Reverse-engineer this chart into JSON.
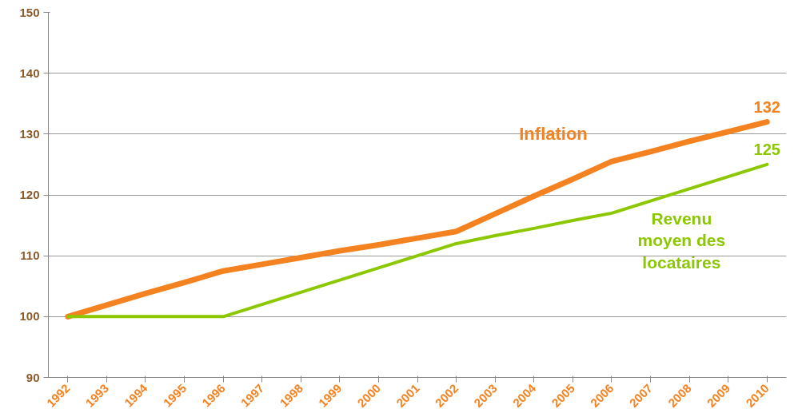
{
  "chart_data": {
    "type": "line",
    "categories": [
      "1992",
      "1993",
      "1994",
      "1995",
      "1996",
      "1997",
      "1998",
      "1999",
      "2000",
      "2001",
      "2002",
      "2003",
      "2004",
      "2005",
      "2006",
      "2007",
      "2008",
      "2009",
      "2010"
    ],
    "series": [
      {
        "name": "Inflation",
        "color": "#f58220",
        "values": [
          100,
          101.9,
          103.8,
          105.6,
          107.5,
          108.6,
          109.7,
          110.8,
          111.8,
          112.9,
          114,
          116.9,
          119.8,
          122.6,
          125.5,
          127.1,
          128.8,
          130.4,
          132
        ],
        "value_labels": [
          null,
          null,
          null,
          null,
          null,
          null,
          null,
          null,
          null,
          null,
          null,
          null,
          null,
          null,
          null,
          null,
          null,
          null,
          "132"
        ]
      },
      {
        "name": "Revenu moyen des locataires",
        "color": "#8cc800",
        "values": [
          100,
          100,
          100,
          100,
          100,
          102,
          104,
          106,
          108,
          110,
          112,
          113.3,
          114.5,
          115.8,
          117,
          119,
          121,
          123,
          125
        ],
        "value_labels": [
          null,
          null,
          null,
          null,
          null,
          null,
          null,
          null,
          null,
          null,
          null,
          null,
          null,
          null,
          null,
          null,
          null,
          null,
          "125"
        ]
      }
    ],
    "ylim": [
      90,
      150
    ],
    "yticks": [
      90,
      100,
      110,
      120,
      130,
      140,
      150
    ],
    "grid": "y",
    "legend": false,
    "marker": "none",
    "line_style": "solid"
  }
}
